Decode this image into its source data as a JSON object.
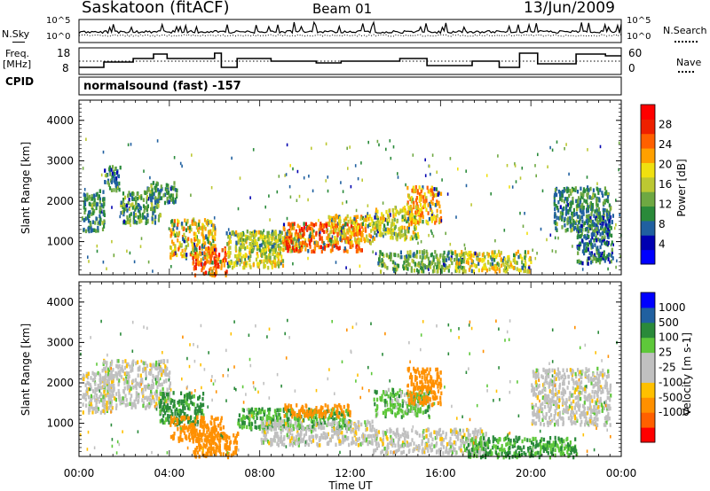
{
  "header": {
    "title": "Saskatoon (fitACF)",
    "beam": "Beam 01",
    "date": "13/Jun/2009"
  },
  "noise_panel": {
    "left_label": "N.Sky",
    "left_ticks": [
      "10^5",
      "10^0"
    ],
    "right_ticks": [
      "10^5",
      "10^0"
    ],
    "right_label": "N.Search"
  },
  "freq_panel": {
    "left_label_1": "Freq.",
    "left_label_2": "[MHz]",
    "left_ticks": [
      "18",
      "8"
    ],
    "right_ticks": [
      "60",
      "0"
    ],
    "right_label": "Nave"
  },
  "cpid": {
    "label": "CPID",
    "value": "normalsound (fast) -157"
  },
  "time_axis": {
    "label": "Time UT",
    "ticks": [
      "00:00",
      "04:00",
      "08:00",
      "12:00",
      "16:00",
      "20:00",
      "00:00"
    ]
  },
  "chart_data": [
    {
      "type": "heatmap",
      "name": "power",
      "ylabel": "Slant Range [km]",
      "yticks": [
        "1000",
        "2000",
        "3000",
        "4000"
      ],
      "ylim": [
        180,
        4500
      ],
      "xlim": [
        "00:00",
        "24:00"
      ],
      "colorbar_label": "Power [dB]",
      "colorbar_ticks": [
        "4",
        "8",
        "12",
        "16",
        "20",
        "24",
        "28"
      ],
      "colorscale": [
        "#0000ff",
        "#0000b0",
        "#2060a0",
        "#2a8a3a",
        "#6ea842",
        "#bcc832",
        "#f0e010",
        "#ffa000",
        "#ff6000",
        "#ee2000",
        "#ff0000"
      ],
      "range_km": [
        0,
        5000
      ],
      "time_h": [
        0,
        24
      ],
      "regions": [
        {
          "t": [
            0.1,
            1.1
          ],
          "r": [
            1300,
            2300
          ],
          "v": 10
        },
        {
          "t": [
            1.1,
            1.8
          ],
          "r": [
            2300,
            2900
          ],
          "v": 8
        },
        {
          "t": [
            1.8,
            3.6
          ],
          "r": [
            1500,
            2300
          ],
          "v": 12
        },
        {
          "t": [
            3.0,
            4.3
          ],
          "r": [
            2000,
            2500
          ],
          "v": 10
        },
        {
          "t": [
            4.0,
            6.0
          ],
          "r": [
            600,
            1600
          ],
          "v": 20
        },
        {
          "t": [
            5.0,
            6.5
          ],
          "r": [
            200,
            900
          ],
          "v": 26
        },
        {
          "t": [
            6.5,
            9.0
          ],
          "r": [
            400,
            1300
          ],
          "v": 18
        },
        {
          "t": [
            7.0,
            10.0
          ],
          "r": [
            800,
            1300
          ],
          "v": 16
        },
        {
          "t": [
            9.0,
            12.5
          ],
          "r": [
            800,
            1500
          ],
          "v": 26
        },
        {
          "t": [
            11.0,
            13.0
          ],
          "r": [
            1000,
            1700
          ],
          "v": 20
        },
        {
          "t": [
            13.0,
            15.0
          ],
          "r": [
            1100,
            1900
          ],
          "v": 18
        },
        {
          "t": [
            13.2,
            17.0
          ],
          "r": [
            300,
            800
          ],
          "v": 12
        },
        {
          "t": [
            14.5,
            16.0
          ],
          "r": [
            1500,
            2400
          ],
          "v": 22
        },
        {
          "t": [
            16.6,
            20.0
          ],
          "r": [
            300,
            800
          ],
          "v": 18
        },
        {
          "t": [
            21.0,
            23.5
          ],
          "r": [
            1300,
            2400
          ],
          "v": 10
        },
        {
          "t": [
            22.0,
            23.6
          ],
          "r": [
            500,
            1700
          ],
          "v": 8
        }
      ]
    },
    {
      "type": "heatmap",
      "name": "velocity",
      "ylabel": "Slant Range [km]",
      "yticks": [
        "1000",
        "2000",
        "3000",
        "4000"
      ],
      "ylim": [
        180,
        4500
      ],
      "xlim": [
        "00:00",
        "24:00"
      ],
      "colorbar_label": "Velocity [m s-1]",
      "colorbar_ticks": [
        "1000",
        "500",
        "100",
        "25",
        "-25",
        "-100",
        "-500",
        "-1000"
      ],
      "colorscale": [
        "#0000ff",
        "#2060a0",
        "#2a8a3a",
        "#5ec83a",
        "#c0c0c0",
        "#c0c0c0",
        "#ffc000",
        "#ff9000",
        "#ff6000",
        "#ff0000"
      ],
      "range_km": [
        0,
        5000
      ],
      "time_h": [
        0,
        24
      ],
      "regions": [
        {
          "t": [
            0.1,
            1.5
          ],
          "r": [
            1300,
            2300
          ],
          "v": 0
        },
        {
          "t": [
            1.0,
            4.0
          ],
          "r": [
            1400,
            2600
          ],
          "v": 0
        },
        {
          "t": [
            3.5,
            5.5
          ],
          "r": [
            1000,
            1800
          ],
          "v": 80
        },
        {
          "t": [
            4.0,
            6.5
          ],
          "r": [
            600,
            1200
          ],
          "v": -150
        },
        {
          "t": [
            5.0,
            7.0
          ],
          "r": [
            200,
            800
          ],
          "v": -100
        },
        {
          "t": [
            7.0,
            12.0
          ],
          "r": [
            900,
            1400
          ],
          "v": 60
        },
        {
          "t": [
            8.0,
            13.0
          ],
          "r": [
            500,
            1100
          ],
          "v": 0
        },
        {
          "t": [
            9.0,
            12.0
          ],
          "r": [
            1200,
            1500
          ],
          "v": -150
        },
        {
          "t": [
            13.0,
            15.5
          ],
          "r": [
            1200,
            1900
          ],
          "v": 40
        },
        {
          "t": [
            14.5,
            16.0
          ],
          "r": [
            1500,
            2400
          ],
          "v": -150
        },
        {
          "t": [
            13.0,
            18.0
          ],
          "r": [
            300,
            900
          ],
          "v": 0
        },
        {
          "t": [
            17.0,
            22.0
          ],
          "r": [
            200,
            700
          ],
          "v": 60
        },
        {
          "t": [
            20.0,
            23.5
          ],
          "r": [
            1000,
            2400
          ],
          "v": 0
        }
      ]
    }
  ]
}
